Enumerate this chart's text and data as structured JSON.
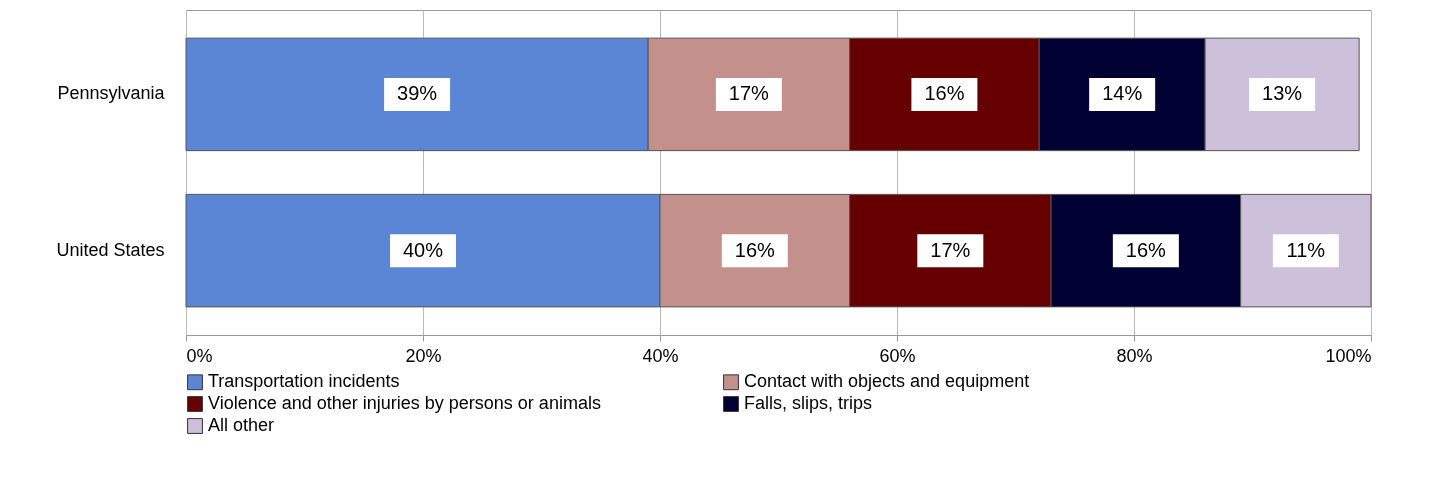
{
  "chart_data": {
    "type": "bar",
    "orientation": "horizontal",
    "stacked": true,
    "grid": "x",
    "legend": "bottom",
    "categories": [
      "Pennsylvania",
      "United States"
    ],
    "series": [
      {
        "name": "Transportation incidents",
        "color": "#5b86d6",
        "values": [
          39,
          40
        ],
        "value_labels": [
          "39%",
          "40%"
        ]
      },
      {
        "name": "Contact with objects and equipment",
        "color": "#c4908c",
        "values": [
          17,
          16
        ],
        "value_labels": [
          "17%",
          "16%"
        ]
      },
      {
        "name": "Violence and other injuries by persons or animals",
        "color": "#660000",
        "values": [
          16,
          17
        ],
        "value_labels": [
          "16%",
          "17%"
        ]
      },
      {
        "name": "Falls, slips, trips",
        "color": "#000033",
        "values": [
          14,
          16
        ],
        "value_labels": [
          "14%",
          "16%"
        ]
      },
      {
        "name": "All other",
        "color": "#ccc0da",
        "values": [
          13,
          11
        ],
        "value_labels": [
          "13%",
          "11%"
        ]
      }
    ],
    "xlim": [
      0,
      100
    ],
    "xticks": [
      {
        "value": 0,
        "label": "0%"
      },
      {
        "value": 20,
        "label": "20%"
      },
      {
        "value": 40,
        "label": "40%"
      },
      {
        "value": 60,
        "label": "60%"
      },
      {
        "value": 80,
        "label": "80%"
      },
      {
        "value": 100,
        "label": "100%"
      }
    ]
  }
}
